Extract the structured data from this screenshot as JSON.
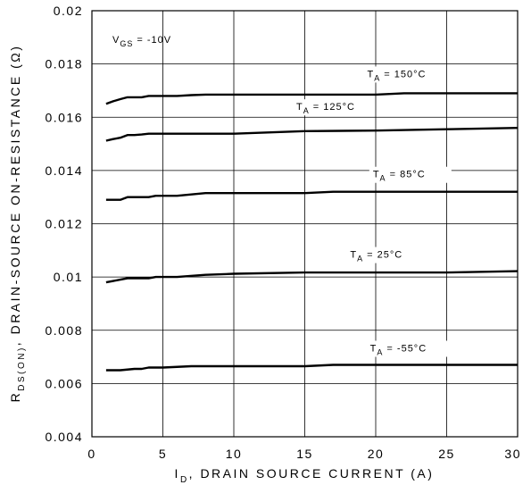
{
  "chart_data": {
    "type": "line",
    "xlabel_main": ", DRAIN SOURCE CURRENT (A)",
    "xlabel_symbol": "I",
    "xlabel_sub": "D",
    "ylabel_symbol": "R",
    "ylabel_sub": "DS(ON)",
    "ylabel_main": ", DRAIN-SOURCE ON-RESISTANCE (Ω)",
    "condition_main": "V",
    "condition_sub": "GS",
    "condition_value": " = -10V",
    "xlim": [
      0,
      30
    ],
    "ylim": [
      0.004,
      0.02
    ],
    "xticks": [
      "0",
      "5",
      "10",
      "15",
      "20",
      "25",
      "30"
    ],
    "yticks": [
      "0.004",
      "0.006",
      "0.008",
      "0.01",
      "0.012",
      "0.014",
      "0.016",
      "0.018",
      "0.02"
    ],
    "grid": true,
    "series": [
      {
        "label_main": "T",
        "label_sub": "A",
        "label_value": " = 150°C",
        "x": [
          1,
          1.5,
          2,
          2.5,
          3,
          3.5,
          4,
          5,
          6,
          7,
          8,
          10,
          15,
          20,
          22,
          25,
          30
        ],
        "y": [
          0.0165,
          0.0166,
          0.01668,
          0.01675,
          0.01675,
          0.01675,
          0.0168,
          0.0168,
          0.0168,
          0.01683,
          0.01685,
          0.01685,
          0.01685,
          0.01685,
          0.0169,
          0.0169,
          0.0169
        ]
      },
      {
        "label_main": "T",
        "label_sub": "A",
        "label_value": " = 125°C",
        "x": [
          1,
          1.5,
          2,
          2.5,
          3,
          3.5,
          4,
          5,
          8,
          10,
          15,
          20,
          25,
          30
        ],
        "y": [
          0.01512,
          0.01518,
          0.01523,
          0.01533,
          0.01533,
          0.01535,
          0.01538,
          0.01538,
          0.01538,
          0.01538,
          0.01548,
          0.0155,
          0.01555,
          0.0156
        ]
      },
      {
        "label_main": "T",
        "label_sub": "A",
        "label_value": " = 85°C",
        "x": [
          1,
          2,
          2.5,
          3,
          4,
          4.5,
          6,
          8,
          10,
          15,
          17,
          20,
          25,
          30
        ],
        "y": [
          0.0129,
          0.0129,
          0.013,
          0.013,
          0.013,
          0.01305,
          0.01305,
          0.01315,
          0.01315,
          0.01315,
          0.0132,
          0.0132,
          0.0132,
          0.0132
        ]
      },
      {
        "label_main": "T",
        "label_sub": "A",
        "label_value": " = 25°C",
        "x": [
          1,
          2,
          2.5,
          3,
          4,
          4.5,
          6,
          8,
          10,
          15,
          20,
          25,
          30
        ],
        "y": [
          0.0098,
          0.0099,
          0.00995,
          0.00995,
          0.00995,
          0.01,
          0.01,
          0.01008,
          0.01012,
          0.01017,
          0.01017,
          0.01017,
          0.01022
        ]
      },
      {
        "label_main": "T",
        "label_sub": "A",
        "label_value": " = -55°C",
        "x": [
          1,
          2,
          3,
          3.5,
          4,
          5,
          7,
          10,
          15,
          17,
          20,
          25,
          30
        ],
        "y": [
          0.0065,
          0.0065,
          0.00655,
          0.00655,
          0.0066,
          0.0066,
          0.00665,
          0.00665,
          0.00665,
          0.0067,
          0.0067,
          0.0067,
          0.0067
        ]
      }
    ]
  }
}
